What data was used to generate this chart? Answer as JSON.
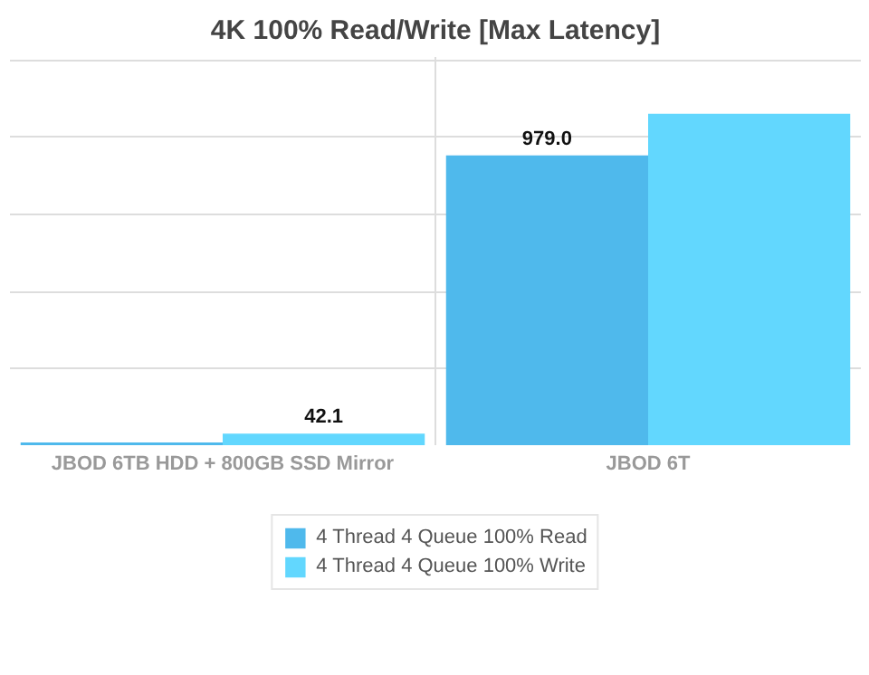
{
  "chart_data": {
    "type": "bar",
    "title": "4K 100% Read/Write [Max Latency]",
    "categories": [
      "JBOD 6TB HDD + 800GB SSD Mirror",
      "JBOD 6T"
    ],
    "series": [
      {
        "name": "4 Thread 4 Queue 100% Read",
        "color": "#4fb9ec",
        "values": [
          12,
          979.0
        ],
        "value_labels": [
          null,
          "979.0"
        ]
      },
      {
        "name": "4 Thread 4 Queue 100% Write",
        "color": "#62d7fe",
        "values": [
          42.1,
          1119
        ],
        "value_labels": [
          "42.1",
          null
        ]
      }
    ],
    "ylim": [
      0,
      1310
    ],
    "yticks": [
      {
        "value": 260,
        "label": null
      },
      {
        "value": 520,
        "label": null
      },
      {
        "value": 780,
        "label": null
      },
      {
        "value": 1040,
        "label": null
      },
      {
        "value": 1300,
        "label": null
      }
    ],
    "tick_labels": "x",
    "grid": true,
    "legend": "bottom"
  }
}
